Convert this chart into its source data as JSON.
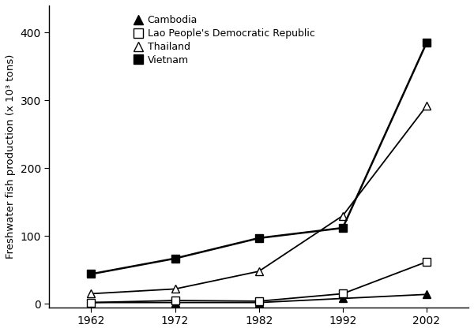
{
  "years": [
    1962,
    1972,
    1982,
    1992,
    2002
  ],
  "cambodia": [
    2,
    2,
    2,
    8,
    14
  ],
  "lao": [
    2,
    5,
    4,
    15,
    62
  ],
  "thailand": [
    15,
    22,
    48,
    130,
    292
  ],
  "vietnam": [
    44,
    67,
    97,
    112,
    385
  ],
  "ylabel": "Freshwater fish production (x 10³ tons)",
  "yticks": [
    0,
    100,
    200,
    300,
    400
  ],
  "ylim": [
    -5,
    440
  ],
  "xticks": [
    1962,
    1972,
    1982,
    1992,
    2002
  ],
  "xlim": [
    1957,
    2007
  ],
  "legend_labels": [
    "Cambodia",
    "Lao People's Democratic Republic",
    "Thailand",
    "Vietnam"
  ],
  "line_color": "#000000",
  "bg_color": "#ffffff"
}
